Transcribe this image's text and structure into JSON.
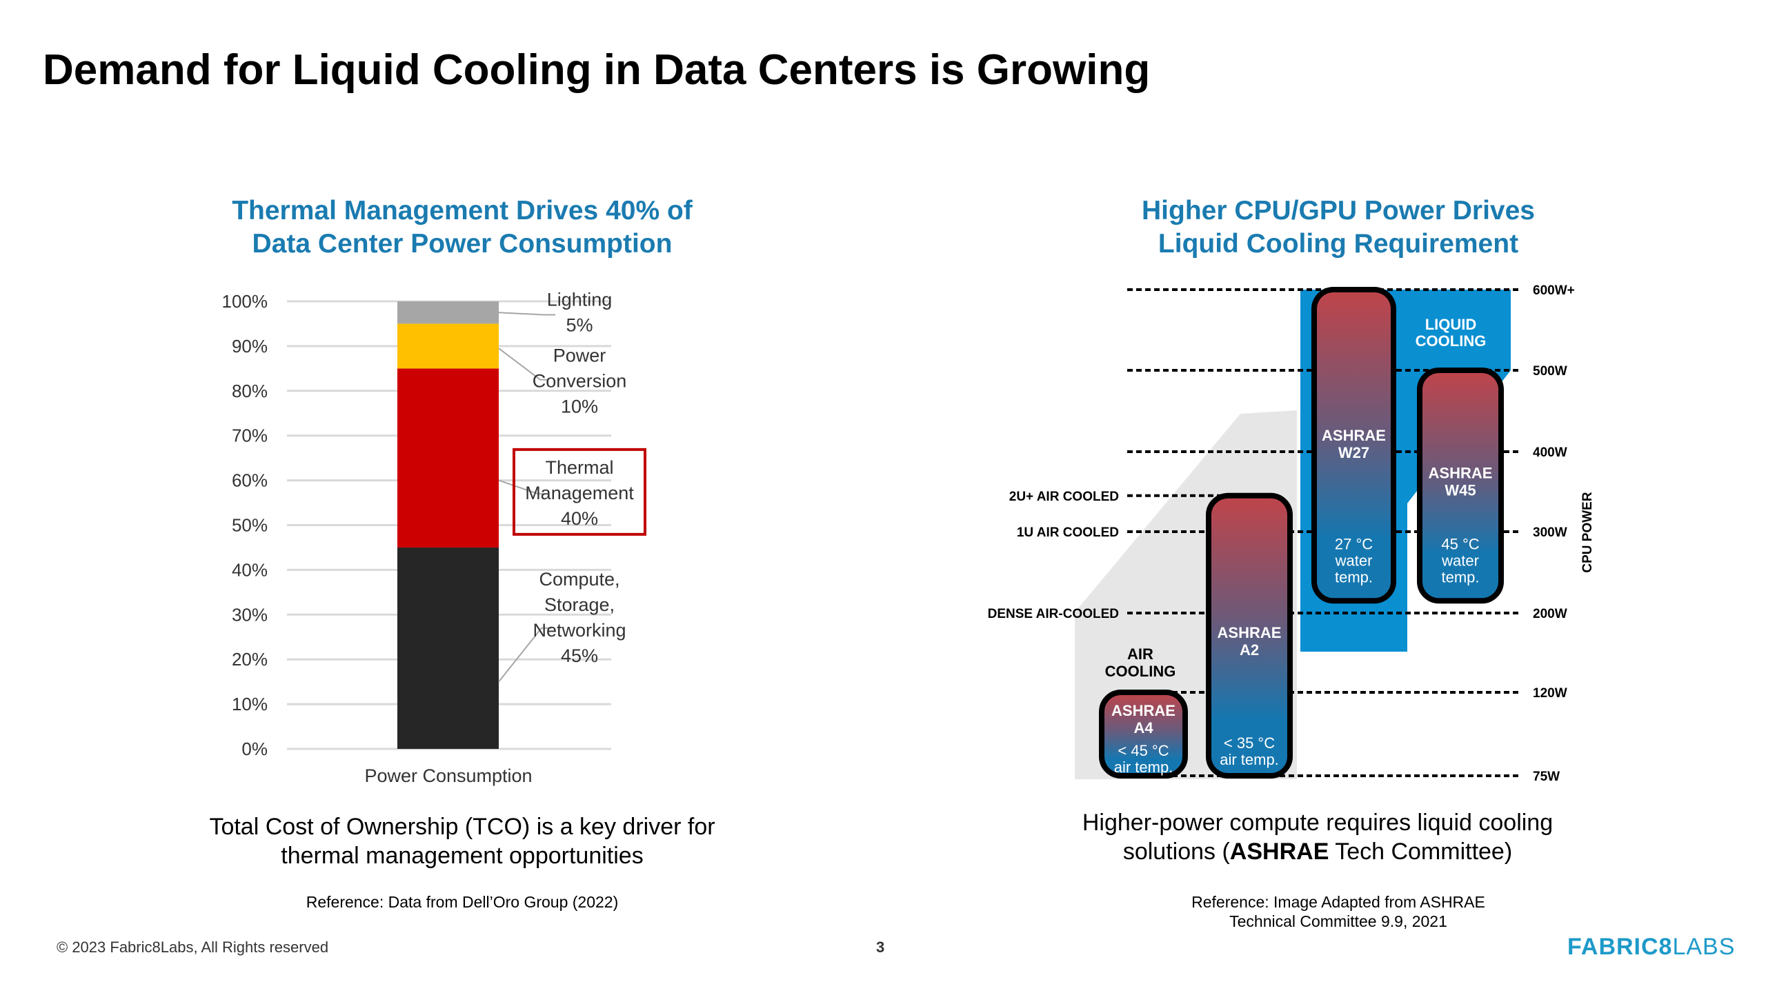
{
  "slide": {
    "title": "Demand for Liquid Cooling in Data Centers is Growing",
    "copyright": "© 2023 Fabric8Labs, All Rights reserved",
    "page_number": "3",
    "logo": {
      "bold": "FABRIC8",
      "light": "LABS",
      "color": "#1d9ac9"
    }
  },
  "left": {
    "title_line1": "Thermal Management Drives 40% of",
    "title_line2": "Data Center Power Consumption",
    "caption_line1": "Total Cost of Ownership (TCO) is a key driver for",
    "caption_line2": "thermal management opportunities",
    "reference": "Reference: Data from Dell’Oro Group (2022)"
  },
  "right": {
    "title_line1": "Higher CPU/GPU Power Drives",
    "title_line2": "Liquid Cooling Requirement",
    "caption_line1": "Higher-power compute requires liquid cooling",
    "caption_pre": "solutions (",
    "caption_bold": "ASHRAE",
    "caption_post": " Tech Committee)",
    "reference_line1": "Reference: Image Adapted from ASHRAE",
    "reference_line2": "Technical Committee 9.9, 2021"
  },
  "chart_data": [
    {
      "type": "bar",
      "stacked": true,
      "title": "Thermal Management Drives 40% of Data Center Power Consumption",
      "categories": [
        "Power Consumption"
      ],
      "xlabel": "Power Consumption",
      "ylabel": "",
      "ylim": [
        0,
        100
      ],
      "yticks": [
        "0%",
        "10%",
        "20%",
        "30%",
        "40%",
        "50%",
        "60%",
        "70%",
        "80%",
        "90%",
        "100%"
      ],
      "grid": true,
      "series": [
        {
          "name": "Compute, Storage, Networking",
          "label_lines": [
            "Compute,",
            "Storage,",
            "Networking",
            "45%"
          ],
          "values": [
            45
          ],
          "color": "#262626"
        },
        {
          "name": "Thermal Management",
          "label_lines": [
            "Thermal",
            "Management",
            "40%"
          ],
          "values": [
            40
          ],
          "color": "#cc0000",
          "highlighted": true,
          "highlight_color": "#c00000"
        },
        {
          "name": "Power Conversion",
          "label_lines": [
            "Power",
            "Conversion",
            "10%"
          ],
          "values": [
            10
          ],
          "color": "#ffc000"
        },
        {
          "name": "Lighting",
          "label_lines": [
            "Lighting",
            "5%"
          ],
          "values": [
            5
          ],
          "color": "#a6a6a6"
        }
      ]
    },
    {
      "type": "diagram",
      "title": "Higher CPU/GPU Power Drives Liquid Cooling Requirement",
      "ylabel": "CPU POWER",
      "levels": [
        {
          "label": "75W",
          "value": 75
        },
        {
          "label": "120W",
          "value": 120
        },
        {
          "label": "200W",
          "value": 200
        },
        {
          "label": "300W",
          "value": 300
        },
        {
          "label": "400W",
          "value": 400
        },
        {
          "label": "500W",
          "value": 500
        },
        {
          "label": "600W+",
          "value": 600
        }
      ],
      "server_levels": [
        {
          "label": "DENSE AIR-COOLED",
          "value": 200
        },
        {
          "label": "1U AIR COOLED",
          "value": 300
        },
        {
          "label": "2U+ AIR COOLED",
          "value": 345
        }
      ],
      "regions": [
        {
          "label_lines": [
            "AIR",
            "COOLING"
          ],
          "color": "#e6e6e6"
        },
        {
          "label_lines": [
            "LIQUID",
            "COOLING"
          ],
          "color": "#0a8fd1"
        }
      ],
      "classes": [
        {
          "name": "ASHRAE A4",
          "title_lines": [
            "ASHRAE",
            "A4"
          ],
          "temp_lines": [
            "< 45 °C",
            "air temp."
          ],
          "min": 75,
          "max": 120
        },
        {
          "name": "ASHRAE A2",
          "title_lines": [
            "ASHRAE",
            "A2"
          ],
          "temp_lines": [
            "< 35 °C",
            "air temp."
          ],
          "min": 75,
          "max": 345
        },
        {
          "name": "ASHRAE W27",
          "title_lines": [
            "ASHRAE",
            "W27"
          ],
          "temp_lines": [
            "27 °C",
            "water",
            "temp."
          ],
          "min": 215,
          "max": 600
        },
        {
          "name": "ASHRAE W45",
          "title_lines": [
            "ASHRAE",
            "W45"
          ],
          "temp_lines": [
            "45 °C",
            "water",
            "temp."
          ],
          "min": 215,
          "max": 500
        }
      ],
      "colors": {
        "hot": "#c0444a",
        "cool": "#1577b0",
        "outline": "#000000"
      }
    }
  ]
}
